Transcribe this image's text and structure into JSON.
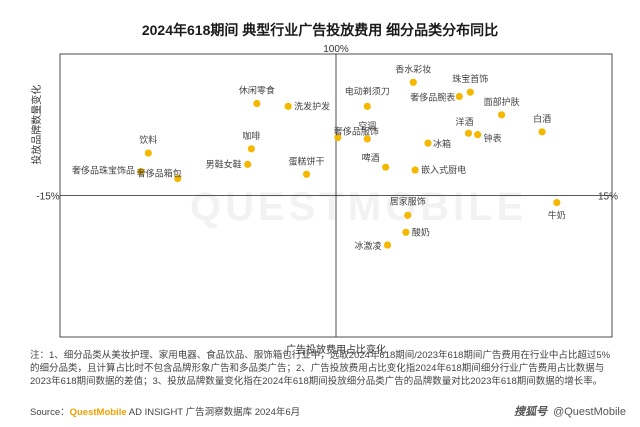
{
  "title": "2024年618期间 典型行业广告投放费用 细分品类分布同比",
  "chart_data": {
    "type": "scatter",
    "xlabel": "广告投放费用占比变化",
    "ylabel": "投放品牌数量变化",
    "x_axis_labels": {
      "min": "-15%",
      "max": "15%"
    },
    "y_axis_labels": {
      "max": "100%"
    },
    "xlim": [
      -15,
      15
    ],
    "ylim": [
      -100,
      100
    ],
    "point_color": "#f5b800",
    "points": [
      {
        "name": "休闲零食",
        "x": -4.3,
        "y": 65
      },
      {
        "name": "洗发护发",
        "x": -2.6,
        "y": 63
      },
      {
        "name": "电动剃须刀",
        "x": 1.7,
        "y": 63
      },
      {
        "name": "香水彩妆",
        "x": 4.2,
        "y": 80
      },
      {
        "name": "珠宝首饰",
        "x": 7.3,
        "y": 73
      },
      {
        "name": "奢侈品腕表",
        "x": 6.7,
        "y": 70
      },
      {
        "name": "面部护肤",
        "x": 9.0,
        "y": 57
      },
      {
        "name": "白酒",
        "x": 11.2,
        "y": 45
      },
      {
        "name": "洋酒",
        "x": 7.2,
        "y": 44
      },
      {
        "name": "钟表",
        "x": 7.7,
        "y": 43
      },
      {
        "name": "空调",
        "x": 1.7,
        "y": 40
      },
      {
        "name": "冰箱",
        "x": 5.0,
        "y": 37
      },
      {
        "name": "奢侈品服饰",
        "x": 0.1,
        "y": 41
      },
      {
        "name": "咖啡",
        "x": -4.6,
        "y": 33
      },
      {
        "name": "饮料",
        "x": -10.2,
        "y": 30
      },
      {
        "name": "男鞋女鞋",
        "x": -4.8,
        "y": 22
      },
      {
        "name": "奢侈品珠宝饰品",
        "x": -10.6,
        "y": 17
      },
      {
        "name": "奢侈品箱包",
        "x": -8.6,
        "y": 12
      },
      {
        "name": "蛋糕饼干",
        "x": -1.6,
        "y": 15
      },
      {
        "name": "啤酒",
        "x": 2.7,
        "y": 20
      },
      {
        "name": "嵌入式厨电",
        "x": 4.3,
        "y": 18
      },
      {
        "name": "居家服饰",
        "x": 3.9,
        "y": -14
      },
      {
        "name": "牛奶",
        "x": 12.0,
        "y": -5
      },
      {
        "name": "酸奶",
        "x": 3.8,
        "y": -26
      },
      {
        "name": "冰激凌",
        "x": 2.8,
        "y": -35
      }
    ]
  },
  "note": "注：1、细分品类从美妆护理、家用电器、食品饮品、服饰箱包行业中，选取2024年618期间/2023年618期间广告费用在行业中占比超过5%的细分品类，且计算占比时不包含品牌形象广告和多品类广告；2、广告投放费用占比变化指2024年618期间细分行业广告费用占比数据与2023年618期间数据的差值；3、投放品牌数量变化指在2024年618期间投放细分品类广告的品牌数量对比2023年618期间数据的增长率。",
  "source": {
    "prefix": "Source：",
    "brand": "QuestMobile",
    "text": " AD INSIGHT 广告洞察数据库 2024年6月"
  },
  "watermark": {
    "big": "QUESTMOBILE",
    "left": "搜狐号",
    "right": "@QuestMobile"
  }
}
